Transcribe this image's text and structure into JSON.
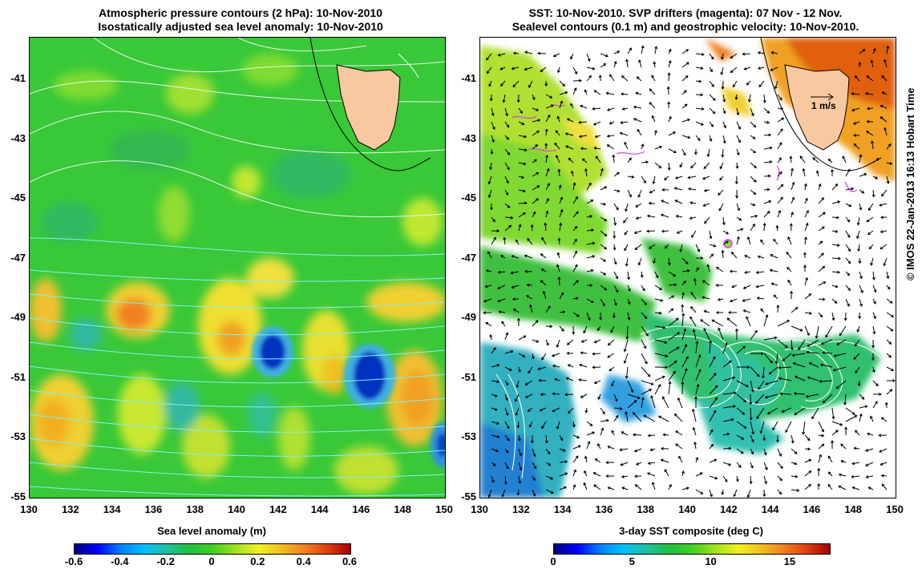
{
  "left_title": {
    "line1": "Atmospheric pressure contours (2 hPa): 10-Nov-2010",
    "line2": "Isostatically adjusted sea level anomaly: 10-Nov-2010"
  },
  "right_title": {
    "line1": "SST: 10-Nov-2010. SVP drifters (magenta): 07 Nov - 12 Nov.",
    "line2": "Sealevel contours (0.1 m) and geostrophic velocity: 10-Nov-2010."
  },
  "lat_ticks": [
    "-41",
    "-43",
    "-45",
    "-47",
    "-49",
    "-51",
    "-53",
    "-55"
  ],
  "lat_values": [
    -41,
    -43,
    -45,
    -47,
    -49,
    -51,
    -53,
    -55
  ],
  "lon_ticks": [
    "130",
    "132",
    "134",
    "136",
    "138",
    "140",
    "142",
    "144",
    "146",
    "148",
    "150"
  ],
  "lon_values": [
    130,
    132,
    134,
    136,
    138,
    140,
    142,
    144,
    146,
    148,
    150
  ],
  "map_extent": {
    "lon_min": 130,
    "lon_max": 150,
    "lat_max": -39.6,
    "lat_min": -55
  },
  "left_colorbar": {
    "title": "Sea level anomaly (m)",
    "ticks": [
      "-0.6",
      "-0.4",
      "-0.2",
      "0",
      "0.2",
      "0.4",
      "0.6"
    ],
    "min": -0.6,
    "max": 0.6
  },
  "right_colorbar": {
    "title": "3-day SST composite (deg C)",
    "ticks": [
      "0",
      "5",
      "10",
      "15"
    ],
    "tick_values": [
      0,
      5,
      10,
      15
    ],
    "min": 0,
    "max": 17.5
  },
  "velocity_scale_label": "1 m/s",
  "credit": "© IMOS 22-Jan-2013 16:13 Hobart Time",
  "colors": {
    "land": "#f8c8a0",
    "ssh_background": "#3cc83c",
    "drifter": "#e040e0"
  }
}
